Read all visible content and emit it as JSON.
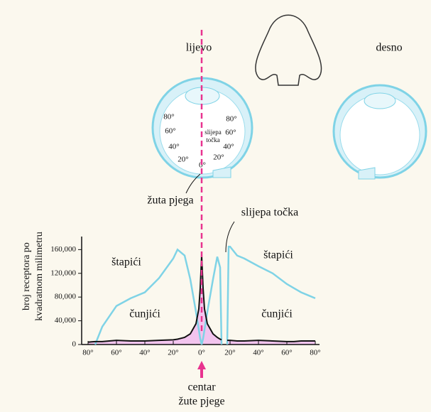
{
  "chart_data": {
    "type": "line",
    "ylabel": [
      "broj receptora po",
      "kvadratnom milimetru"
    ],
    "x": [
      -80,
      -75,
      -70,
      -60,
      -50,
      -40,
      -30,
      -20,
      -17,
      -12,
      -8,
      -4,
      -2,
      -1,
      0,
      1,
      2,
      4,
      8,
      11,
      13,
      14,
      16,
      18,
      19,
      20,
      25,
      30,
      40,
      50,
      60,
      65,
      70,
      75,
      80
    ],
    "series": [
      {
        "name": "štapići",
        "color": "#7fd3e6",
        "values": [
          null,
          0,
          30000,
          65000,
          78000,
          88000,
          112000,
          145000,
          160000,
          150000,
          110000,
          55000,
          25000,
          10000,
          0,
          10000,
          25000,
          55000,
          110000,
          148000,
          130000,
          0,
          null,
          0,
          165000,
          165000,
          150000,
          145000,
          132000,
          120000,
          102000,
          95000,
          88000,
          83000,
          78000
        ]
      },
      {
        "name": "čunjići",
        "color": "#111111",
        "fill": "#f2c4ee",
        "values": [
          4000,
          5000,
          5000,
          7000,
          6000,
          6000,
          7000,
          8000,
          9000,
          12000,
          18000,
          35000,
          60000,
          95000,
          150000,
          95000,
          60000,
          35000,
          18000,
          12000,
          9000,
          8000,
          null,
          7000,
          7000,
          7000,
          6000,
          6000,
          7000,
          6000,
          5000,
          5000,
          6000,
          6000,
          6000
        ]
      }
    ],
    "xlim": [
      -84.5,
      83
    ],
    "ylim": [
      0,
      182000
    ],
    "xticks": [
      {
        "value": -80,
        "label": "80°"
      },
      {
        "value": -60,
        "label": "60°"
      },
      {
        "value": -40,
        "label": "40°"
      },
      {
        "value": -20,
        "label": "20°"
      },
      {
        "value": 0,
        "label": "0°"
      },
      {
        "value": 20,
        "label": "20°"
      },
      {
        "value": 40,
        "label": "40°"
      },
      {
        "value": 60,
        "label": "60°"
      },
      {
        "value": 80,
        "label": "80°"
      }
    ],
    "yticks": [
      0,
      {
        "value": 40000,
        "label": "40,000"
      },
      {
        "value": 80000,
        "label": "80,000"
      },
      {
        "value": 120000,
        "label": "120,000"
      },
      {
        "value": 160000,
        "label": "160,000"
      }
    ],
    "annotations": {
      "left": "lijevo",
      "right": "desno",
      "fovea": "žuta pjega",
      "blind_spot": "slijepa točka",
      "blind_spot_eye": [
        "slijepa",
        "točka"
      ],
      "center": [
        "centar",
        "žute pjege"
      ]
    },
    "eye_labels": [
      "80°",
      "60°",
      "40°",
      "20°",
      "0°",
      "80°",
      "60°",
      "40°",
      "20°"
    ]
  }
}
